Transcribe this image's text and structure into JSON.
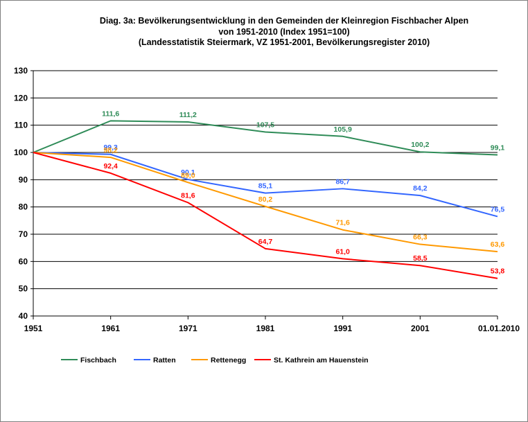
{
  "chart_data": {
    "type": "line",
    "title_lines": [
      "Diag. 3a: Bevölkerungsentwicklung  in den Gemeinden  der Kleinregion Fischbacher Alpen",
      "von 1951-2010  (Index 1951=100)",
      "(Landesstatistik  Steiermark, VZ 1951-2001,  Bevölkerungsregister  2010)"
    ],
    "categories": [
      "1951",
      "1961",
      "1971",
      "1981",
      "1991",
      "2001",
      "01.01.2010"
    ],
    "ylim": [
      40,
      130
    ],
    "yticks": [
      "40",
      "50",
      "60",
      "70",
      "80",
      "90",
      "100",
      "110",
      "120",
      "130"
    ],
    "grid": "horizontal",
    "legend_position": "bottom",
    "series": [
      {
        "name": "Fischbach",
        "color": "#2e8b57",
        "values": [
          100,
          111.6,
          111.2,
          107.5,
          105.9,
          100.2,
          99.1
        ],
        "labels": [
          "",
          "111,6",
          "111,2",
          "107,5",
          "105,9",
          "100,2",
          "99,1"
        ]
      },
      {
        "name": "Ratten",
        "color": "#3366ff",
        "values": [
          100,
          99.3,
          90.1,
          85.1,
          86.7,
          84.2,
          76.5
        ],
        "labels": [
          "",
          "99,3",
          "90,1",
          "85,1",
          "86,7",
          "84,2",
          "76,5"
        ]
      },
      {
        "name": "Rettenegg",
        "color": "#ff9900",
        "values": [
          100,
          98.2,
          89.0,
          80.2,
          71.6,
          66.3,
          63.6
        ],
        "labels": [
          "",
          "98,2",
          "89,0",
          "80,2",
          "71,6",
          "66,3",
          "63,6"
        ]
      },
      {
        "name": "St. Kathrein am Hauenstein",
        "color": "#ff0000",
        "values": [
          100,
          92.4,
          81.6,
          64.7,
          61.0,
          58.5,
          53.8
        ],
        "labels": [
          "",
          "92,4",
          "81,6",
          "64,7",
          "61,0",
          "58,5",
          "53,8"
        ]
      }
    ]
  }
}
